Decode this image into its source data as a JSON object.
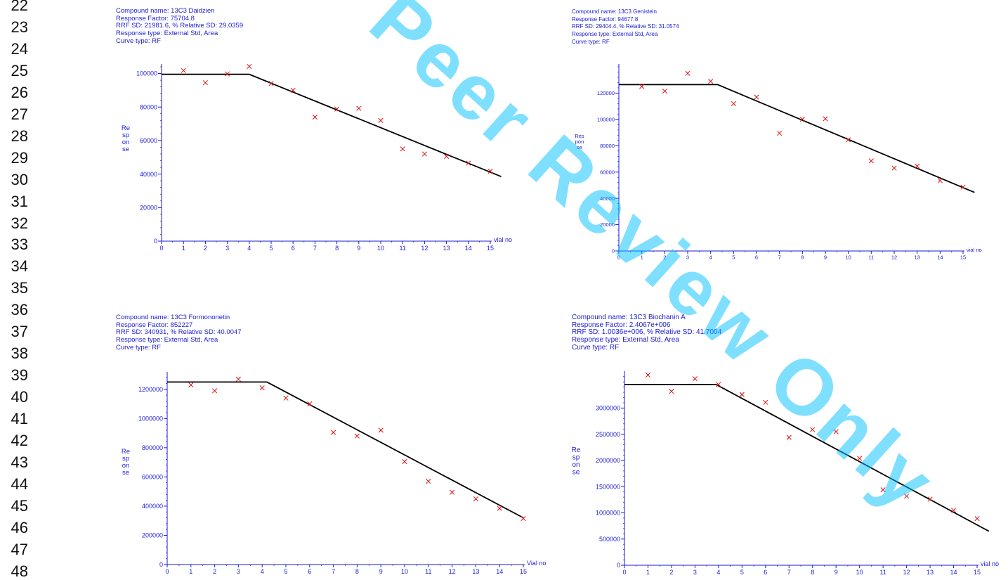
{
  "line_numbers": [
    "22",
    "23",
    "24",
    "25",
    "26",
    "27",
    "28",
    "29",
    "30",
    "31",
    "32",
    "33",
    "34",
    "35",
    "36",
    "37",
    "38",
    "39",
    "40",
    "41",
    "42",
    "43",
    "44",
    "45",
    "46",
    "47",
    "48"
  ],
  "watermark": "Peer Review Only",
  "colors": {
    "label": "#1a1ad6",
    "marker": "#dd1111",
    "line": "#000000",
    "watermark": "#00bfff"
  },
  "charts": [
    {
      "info": [
        "Compound name: 13C3 Daidzien",
        "Response Factor: 75704.8",
        "RRF SD: 21981.6,  % Relative SD: 29.0359",
        "Response type: External Std, Area",
        "Curve type: RF"
      ],
      "ylabel": [
        "Re",
        "sp",
        "on",
        "se"
      ],
      "xlabel": "vial no"
    },
    {
      "info": [
        "Compound name: 13C3 Genistein",
        "Response Factor: 94677.8",
        "RRF SD: 29404.4,  % Relative SD: 31.0574",
        "Response type: External Std, Area",
        "Curve type: RF"
      ],
      "ylabel": [
        "Res",
        "pon",
        "se"
      ],
      "xlabel": "vial no"
    },
    {
      "info": [
        "Compound name: 13C3 Formononetin",
        "Response Factor: 852227",
        "RRF SD: 340931,  % Relative SD: 40.0047",
        "Response type: External Std, Area",
        "Curve type: RF"
      ],
      "ylabel": [
        "Re",
        "sp",
        "on",
        "se"
      ],
      "xlabel": "Vial no"
    },
    {
      "info": [
        "Compound name: 13C3 Biochanin A",
        "Response Factor: 2.4067e+006",
        "RRF SD: 1.0036e+006,  % Relative SD: 41.7004",
        "Response type: External Std, Area",
        "Curve type: RF"
      ],
      "ylabel": [
        "Re",
        "sp",
        "on",
        "se"
      ],
      "xlabel": "vial no"
    }
  ],
  "chart_data": [
    {
      "type": "scatter",
      "title": "13C3 Daidzien",
      "xlabel": "vial no",
      "ylabel": "Response",
      "xlim": [
        0,
        15
      ],
      "ylim": [
        0,
        104000
      ],
      "yticks": [
        0,
        20000,
        40000,
        60000,
        80000,
        100000
      ],
      "x": [
        1,
        2,
        3,
        4,
        5,
        6,
        7,
        8,
        9,
        10,
        11,
        12,
        13,
        14,
        15
      ],
      "y": [
        101800,
        94500,
        99800,
        104200,
        94000,
        90000,
        74000,
        78800,
        79200,
        72000,
        55000,
        52000,
        50500,
        46500,
        41700
      ],
      "fit_line": [
        [
          0,
          99500
        ],
        [
          4,
          99500
        ],
        [
          15.5,
          38500
        ]
      ]
    },
    {
      "type": "scatter",
      "title": "13C3 Genistein",
      "xlabel": "vial no",
      "ylabel": "Response",
      "xlim": [
        0,
        15
      ],
      "ylim": [
        0,
        140000
      ],
      "yticks": [
        0,
        20000,
        40000,
        60000,
        80000,
        100000,
        120000
      ],
      "x": [
        1,
        2,
        3,
        4,
        5,
        6,
        7,
        8,
        9,
        10,
        11,
        12,
        13,
        14,
        15
      ],
      "y": [
        125000,
        121500,
        135000,
        129000,
        112000,
        117000,
        89500,
        100200,
        100500,
        84500,
        68500,
        63000,
        64500,
        53500,
        48500
      ],
      "fit_line": [
        [
          0,
          126500
        ],
        [
          4.3,
          126500
        ],
        [
          15.5,
          44500
        ]
      ]
    },
    {
      "type": "scatter",
      "title": "13C3 Formononetin",
      "xlabel": "Vial no",
      "ylabel": "Response",
      "xlim": [
        0,
        15
      ],
      "ylim": [
        0,
        1300000
      ],
      "yticks": [
        0,
        200000,
        400000,
        600000,
        800000,
        1000000,
        1200000
      ],
      "x": [
        1,
        2,
        3,
        4,
        5,
        6,
        7,
        8,
        9,
        10,
        11,
        12,
        13,
        14,
        15
      ],
      "y": [
        1230000,
        1190000,
        1270000,
        1210000,
        1140000,
        1100000,
        905000,
        880000,
        920000,
        705000,
        570000,
        495000,
        450000,
        385000,
        315000
      ],
      "fit_line": [
        [
          0,
          1250000
        ],
        [
          4.2,
          1250000
        ],
        [
          15,
          320000
        ]
      ]
    },
    {
      "type": "scatter",
      "title": "13C3 Biochanin A",
      "xlabel": "vial no",
      "ylabel": "Response",
      "xlim": [
        0,
        15
      ],
      "ylim": [
        0,
        3650000
      ],
      "yticks": [
        0,
        500000,
        1000000,
        1500000,
        2000000,
        2500000,
        3000000
      ],
      "x": [
        1,
        2,
        3,
        4,
        5,
        6,
        7,
        8,
        9,
        10,
        11,
        12,
        13,
        14,
        15
      ],
      "y": [
        3630000,
        3320000,
        3560000,
        3450000,
        3260000,
        3110000,
        2440000,
        2590000,
        2550000,
        2040000,
        1440000,
        1320000,
        1260000,
        1050000,
        890000
      ],
      "fit_line": [
        [
          0,
          3450000
        ],
        [
          3.9,
          3450000
        ],
        [
          15.5,
          650000
        ]
      ]
    }
  ]
}
